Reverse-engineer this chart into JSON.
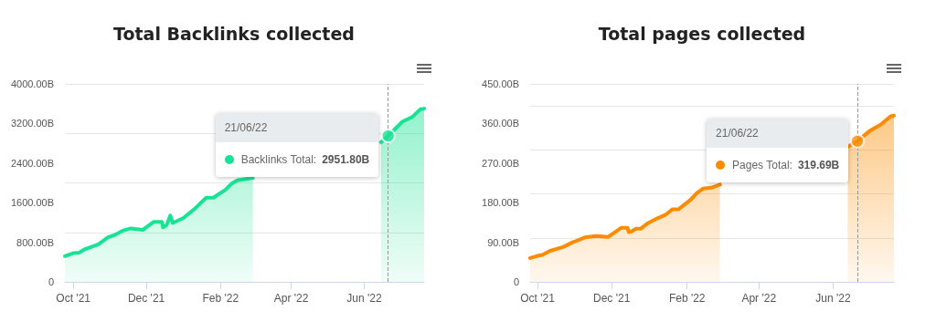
{
  "chart_data": [
    {
      "type": "area",
      "title": "Total Backlinks collected",
      "series": [
        {
          "color": "#17e394",
          "x": [
            "2021-09-24",
            "2021-10-01",
            "2021-10-06",
            "2021-10-10",
            "2021-10-22",
            "2021-10-30",
            "2021-11-04",
            "2021-11-12",
            "2021-11-18",
            "2021-11-28",
            "2021-12-07",
            "2021-12-14",
            "2021-12-15",
            "2021-12-18",
            "2021-12-21",
            "2021-12-23",
            "2022-01-01",
            "2022-01-11",
            "2022-01-20",
            "2022-01-26",
            "2022-02-05",
            "2022-02-10",
            "2022-02-15",
            "2022-02-28",
            "2022-04-15",
            "2022-06-15",
            "2022-06-21",
            "2022-06-28",
            "2022-07-03",
            "2022-07-11",
            "2022-07-18",
            "2022-07-21"
          ],
          "values": [
            520,
            580,
            590,
            650,
            760,
            900,
            940,
            1040,
            1080,
            1050,
            1210,
            1210,
            1100,
            1150,
            1340,
            1190,
            1290,
            1490,
            1700,
            1700,
            1860,
            1980,
            2050,
            2100,
            null,
            2820,
            2950,
            3120,
            3240,
            3330,
            3490,
            3500
          ]
        }
      ],
      "xlim": [
        "2021-09-24",
        "2022-07-21"
      ],
      "xticks": [
        {
          "value": "2021-10-01",
          "label": "Oct '21"
        },
        {
          "value": "2021-12-01",
          "label": "Dec '21"
        },
        {
          "value": "2022-02-01",
          "label": "Feb '22"
        },
        {
          "value": "2022-04-01",
          "label": "Apr '22"
        },
        {
          "value": "2022-06-01",
          "label": "Jun '22"
        }
      ],
      "ylim": [
        0,
        4000
      ],
      "yticks": [
        0,
        {
          "value": 800,
          "label": "800.00B"
        },
        {
          "value": 1600,
          "label": "1600.00B"
        },
        {
          "value": 2400,
          "label": "2400.00B"
        },
        {
          "value": 3200,
          "label": "3200.00B"
        },
        {
          "value": 4000,
          "label": "4000.00B"
        }
      ],
      "grid": "y",
      "ref_lines": [
        {
          "axis": "x",
          "value": "2022-06-21",
          "line_style": "dashed",
          "color": "#999999"
        }
      ],
      "annotations": [
        "21/06/22",
        "Backlinks Total: 2951.80B"
      ]
    },
    {
      "type": "area",
      "title": "Total pages collected",
      "series": [
        {
          "color": "#fb8c00",
          "x": [
            "2021-09-25",
            "2021-10-01",
            "2021-10-05",
            "2021-10-11",
            "2021-10-22",
            "2021-10-30",
            "2021-11-03",
            "2021-11-09",
            "2021-11-18",
            "2021-11-28",
            "2021-12-09",
            "2021-12-14",
            "2021-12-15",
            "2021-12-17",
            "2021-12-21",
            "2021-12-25",
            "2021-12-30",
            "2022-01-08",
            "2022-01-14",
            "2022-01-20",
            "2022-01-25",
            "2022-02-04",
            "2022-02-09",
            "2022-02-14",
            "2022-02-21",
            "2022-02-28",
            "2022-04-15",
            "2022-06-13",
            "2022-06-21",
            "2022-07-01",
            "2022-07-10",
            "2022-07-18",
            "2022-07-21"
          ],
          "values": [
            54,
            59,
            61,
            70,
            79,
            90,
            94,
            101,
            104,
            102,
            123,
            123,
            113,
            114,
            121,
            121,
            132,
            145,
            152,
            165,
            165,
            187,
            202,
            212,
            214,
            221,
            null,
            307,
            320,
            343,
            357,
            376,
            378
          ]
        }
      ],
      "xlim": [
        "2021-09-25",
        "2022-07-21"
      ],
      "xticks": [
        {
          "value": "2021-10-01",
          "label": "Oct '21"
        },
        {
          "value": "2021-12-01",
          "label": "Dec '21"
        },
        {
          "value": "2022-02-01",
          "label": "Feb '22"
        },
        {
          "value": "2022-04-01",
          "label": "Apr '22"
        },
        {
          "value": "2022-06-01",
          "label": "Jun '22"
        }
      ],
      "ylim": [
        0,
        450
      ],
      "yticks": [
        0,
        {
          "value": 90,
          "label": "90.00B"
        },
        {
          "value": 180,
          "label": "180.00B"
        },
        {
          "value": 270,
          "label": "270.00B"
        },
        {
          "value": 360,
          "label": "360.00B"
        },
        {
          "value": 450,
          "label": "450.00B"
        }
      ],
      "grid": "y",
      "ref_lines": [
        {
          "axis": "x",
          "value": "2022-06-21",
          "line_style": "dashed",
          "color": "#999999"
        }
      ],
      "annotations": [
        "21/06/22",
        "Pages Total: 319.69B"
      ]
    }
  ]
}
